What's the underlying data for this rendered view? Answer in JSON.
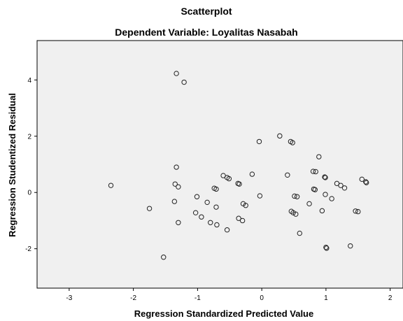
{
  "chart_data": {
    "type": "scatter",
    "title": "Scatterplot",
    "subtitle": "Dependent Variable: Loyalitas Nasabah",
    "xlabel": "Regression Standardized Predicted Value",
    "ylabel": "Regression Studentized Residual",
    "xlim": [
      -3.5,
      2.2
    ],
    "ylim": [
      -3.4,
      5.4
    ],
    "xticks": [
      -3,
      -2,
      -1,
      0,
      1,
      2
    ],
    "yticks": [
      -2,
      0,
      2,
      4
    ],
    "grid": false,
    "colors": {
      "plot_background": "#f0f0f0",
      "marker_stroke": "#222222",
      "frame": "#000000"
    },
    "points": [
      {
        "x": -1.33,
        "y": 4.23
      },
      {
        "x": -1.21,
        "y": 3.92
      },
      {
        "x": -2.35,
        "y": 0.25
      },
      {
        "x": -1.75,
        "y": -0.57
      },
      {
        "x": -1.53,
        "y": -2.3
      },
      {
        "x": -1.36,
        "y": -0.32
      },
      {
        "x": -1.35,
        "y": 0.3
      },
      {
        "x": -1.33,
        "y": 0.9
      },
      {
        "x": -1.3,
        "y": 0.2
      },
      {
        "x": -1.3,
        "y": -1.07
      },
      {
        "x": -1.03,
        "y": -0.72
      },
      {
        "x": -1.01,
        "y": -0.15
      },
      {
        "x": -0.94,
        "y": -0.87
      },
      {
        "x": -0.85,
        "y": -0.35
      },
      {
        "x": -0.8,
        "y": -1.07
      },
      {
        "x": -0.74,
        "y": 0.15
      },
      {
        "x": -0.71,
        "y": 0.12
      },
      {
        "x": -0.71,
        "y": -0.52
      },
      {
        "x": -0.7,
        "y": -1.15
      },
      {
        "x": -0.6,
        "y": 0.6
      },
      {
        "x": -0.54,
        "y": 0.53
      },
      {
        "x": -0.54,
        "y": -1.33
      },
      {
        "x": -0.51,
        "y": 0.49
      },
      {
        "x": -0.37,
        "y": 0.32
      },
      {
        "x": -0.36,
        "y": -0.92
      },
      {
        "x": -0.35,
        "y": 0.3
      },
      {
        "x": -0.3,
        "y": -1.0
      },
      {
        "x": -0.29,
        "y": -0.4
      },
      {
        "x": -0.25,
        "y": -0.46
      },
      {
        "x": -0.15,
        "y": 0.65
      },
      {
        "x": -0.04,
        "y": 1.81
      },
      {
        "x": -0.03,
        "y": -0.12
      },
      {
        "x": 0.28,
        "y": 2.01
      },
      {
        "x": 0.4,
        "y": 0.62
      },
      {
        "x": 0.45,
        "y": 1.81
      },
      {
        "x": 0.46,
        "y": -0.67
      },
      {
        "x": 0.48,
        "y": 1.77
      },
      {
        "x": 0.49,
        "y": -0.72
      },
      {
        "x": 0.51,
        "y": -0.13
      },
      {
        "x": 0.53,
        "y": -0.77
      },
      {
        "x": 0.55,
        "y": -0.15
      },
      {
        "x": 0.59,
        "y": -1.45
      },
      {
        "x": 0.74,
        "y": -0.4
      },
      {
        "x": 0.8,
        "y": 0.75
      },
      {
        "x": 0.81,
        "y": 0.12
      },
      {
        "x": 0.83,
        "y": 0.1
      },
      {
        "x": 0.84,
        "y": 0.74
      },
      {
        "x": 0.89,
        "y": 1.27
      },
      {
        "x": 0.94,
        "y": -0.65
      },
      {
        "x": 0.98,
        "y": 0.55
      },
      {
        "x": 0.99,
        "y": 0.53
      },
      {
        "x": 0.99,
        "y": -0.07
      },
      {
        "x": 1.0,
        "y": -1.95
      },
      {
        "x": 1.01,
        "y": -1.98
      },
      {
        "x": 1.09,
        "y": -0.22
      },
      {
        "x": 1.17,
        "y": 0.32
      },
      {
        "x": 1.23,
        "y": 0.25
      },
      {
        "x": 1.29,
        "y": 0.16
      },
      {
        "x": 1.38,
        "y": -1.9
      },
      {
        "x": 1.46,
        "y": -0.66
      },
      {
        "x": 1.5,
        "y": -0.68
      },
      {
        "x": 1.56,
        "y": 0.47
      },
      {
        "x": 1.62,
        "y": 0.38
      },
      {
        "x": 1.63,
        "y": 0.35
      }
    ]
  }
}
